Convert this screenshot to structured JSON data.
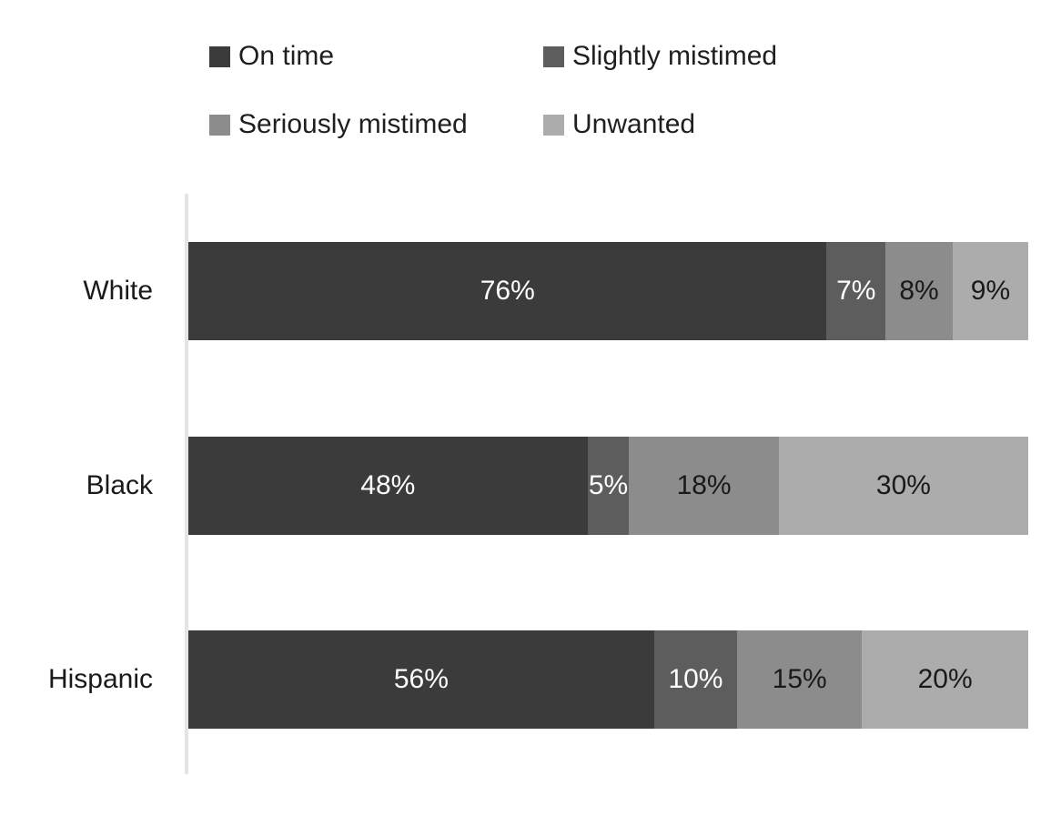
{
  "chart_data": {
    "type": "bar",
    "orientation": "horizontal",
    "stacked": true,
    "grid": false,
    "legend_position": "top",
    "categories": [
      "White",
      "Black",
      "Hispanic"
    ],
    "series": [
      {
        "name": "On time",
        "values": [
          76,
          48,
          56
        ],
        "color": "#3b3b3b",
        "label_color": "#ffffff"
      },
      {
        "name": "Slightly mistimed",
        "values": [
          7,
          5,
          10
        ],
        "color": "#5d5d5d",
        "label_color": "#ffffff"
      },
      {
        "name": "Seriously mistimed",
        "values": [
          8,
          18,
          15
        ],
        "color": "#8c8c8c",
        "label_color": "#1a1a1a"
      },
      {
        "name": "Unwanted",
        "values": [
          9,
          30,
          20
        ],
        "color": "#acacac",
        "label_color": "#1a1a1a"
      }
    ],
    "value_suffix": "%",
    "title": "",
    "xlabel": "",
    "ylabel": "",
    "axis_color": "#e4e4e4",
    "background": "#ffffff"
  }
}
